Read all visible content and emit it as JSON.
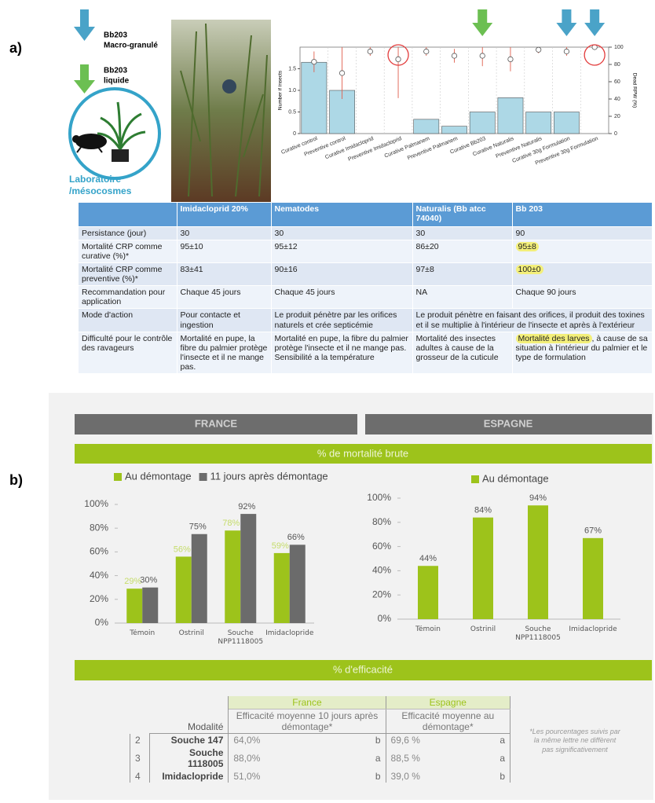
{
  "panel_a": {
    "label": "a)",
    "legend": [
      {
        "lines": [
          "Bb203",
          "Macro-granulé"
        ]
      },
      {
        "lines": [
          "Bb203",
          "liquide"
        ]
      }
    ],
    "site_label": [
      "Laboratoire",
      "/mésocosmes"
    ]
  },
  "table_a": {
    "header": [
      null,
      "Imidacloprid 20%",
      "Nematodes",
      "Naturalis (Bb atcc 74040)",
      "Bb 203"
    ],
    "rows": [
      [
        "Persistance (jour)",
        "30",
        "30",
        "30",
        "90"
      ],
      [
        "Mortalité CRP comme curative (%)*",
        "95±10",
        "95±12",
        "86±20",
        "95±8"
      ],
      [
        "Mortalité CRP comme preventive (%)*",
        "83±41",
        "90±16",
        "97±8",
        "100±0"
      ],
      [
        "Recommandation pour application",
        "Chaque 45 jours",
        "Chaque 45 jours",
        "NA",
        "Chaque 90 jours"
      ],
      [
        "Mode d'action",
        "Pour contacte et ingestion",
        "Le produit pénètre par les orifices naturels et crée septicémie",
        "Le produit pénètre en faisant des orifices, il produit des toxines et il se multiplie à l'intérieur de l'insecte et après à l'extérieur"
      ],
      [
        "Difficulté pour le contrôle des ravageurs",
        "Mortalité en pupe, la fibre du palmier protège l'insecte et il ne mange pas.",
        "Mortalité en pupe, la fibre du palmier protège l'insecte et il ne mange pas. Sensibilité a la température",
        "Mortalité des insectes adultes à cause de la grosseur de la cuticule",
        [
          "Mortalité des larves",
          ", à cause de sa situation à l'intérieur du palmier et le type de formulation"
        ]
      ]
    ]
  },
  "panel_b": {
    "label": "b)",
    "country_headers": [
      "FRANCE",
      "ESPAGNE"
    ],
    "section_titles": [
      "% de mortalité brute",
      "% d'efficacité"
    ],
    "efficacy_table": {
      "group_headers": [
        "France",
        "Espagne"
      ],
      "column_headers": [
        "Modalité",
        "Efficacité moyenne 10 jours après démontage*",
        "Efficacité moyenne au démontage*"
      ],
      "rows": [
        [
          "2",
          "Souche 147",
          "64,0%",
          "b",
          "69,6 %",
          "a"
        ],
        [
          "3",
          "Souche 1118005",
          "88,0%",
          "a",
          "88,5 %",
          "a"
        ],
        [
          "4",
          "Imidaclopride",
          "51,0%",
          "b",
          "39,0 %",
          "b"
        ]
      ]
    },
    "note": "*Les pourcentages suivis par la même lettre ne diffèrent pas significativement"
  },
  "chart_data": [
    {
      "type": "bar",
      "ylabel": "Number if insects",
      "y2label": "Dead RPW (%)",
      "categories": [
        "Curative control",
        "Preventive control",
        "Curative Imidacloprid",
        "Preventive Imidacloprid",
        "Curative Palmanem",
        "Preventive Palmanem",
        "Curative Bb203",
        "Curative Naturalis",
        "Preventive Naturalis",
        "Curative 30g Formulation",
        "Preventive 30g Formulation"
      ],
      "series": [
        {
          "color": "#add8e6",
          "values": [
            1.65,
            1.0,
            0,
            0,
            0.33,
            0.17,
            0.5,
            0.83,
            0.5,
            0.5,
            0
          ]
        },
        {
          "color": "#e0604e",
          "axis": "y2",
          "values": [
            83,
            70,
            95,
            86,
            95,
            90,
            90,
            86,
            97,
            95,
            100
          ],
          "errors": [
            12,
            30,
            5,
            45,
            5,
            8,
            12,
            14,
            4,
            5,
            0
          ]
        }
      ],
      "ylim": [
        0,
        2
      ],
      "yticks": [
        0,
        0.5,
        {
          "value": 1,
          "label": "1.0"
        },
        1.5
      ],
      "y2lim": [
        0,
        100
      ],
      "y2ticks": [
        0,
        20,
        40,
        60,
        80,
        100
      ]
    },
    {
      "type": "bar",
      "categories": [
        "Témoin",
        "Ostrinil",
        "Souche NPP1118005",
        "Imidaclopride"
      ],
      "series": [
        {
          "name": "Au démontage",
          "color": "#9dc31b",
          "values": [
            29,
            56,
            78,
            59
          ],
          "value_labels": [
            "29%",
            "56%",
            "78%",
            "59%"
          ]
        },
        {
          "name": "11 jours après démontage",
          "color": "#6b6b6b",
          "values": [
            30,
            75,
            92,
            66
          ],
          "value_labels": [
            "30%",
            "75%",
            "92%",
            "66%"
          ]
        }
      ],
      "ylim": [
        0,
        100
      ],
      "yticks": [
        {
          "value": 0,
          "label": "0%"
        },
        {
          "value": 20,
          "label": "20%"
        },
        {
          "value": 40,
          "label": "40%"
        },
        {
          "value": 60,
          "label": "60%"
        },
        {
          "value": 80,
          "label": "80%"
        },
        {
          "value": 100,
          "label": "100%"
        }
      ]
    },
    {
      "type": "bar",
      "categories": [
        "Témoin",
        "Ostrinil",
        "Souche NPP1118005",
        "Imidaclopride"
      ],
      "series": [
        {
          "name": "Au démontage",
          "color": "#9dc31b",
          "values": [
            44,
            84,
            94,
            67
          ],
          "value_labels": [
            "44%",
            "84%",
            "94%",
            "67%"
          ]
        }
      ],
      "ylim": [
        0,
        100
      ],
      "yticks": [
        {
          "value": 0,
          "label": "0%"
        },
        {
          "value": 20,
          "label": "20%"
        },
        {
          "value": 40,
          "label": "40%"
        },
        {
          "value": 60,
          "label": "60%"
        },
        {
          "value": 80,
          "label": "80%"
        },
        {
          "value": 100,
          "label": "100%"
        }
      ]
    }
  ]
}
